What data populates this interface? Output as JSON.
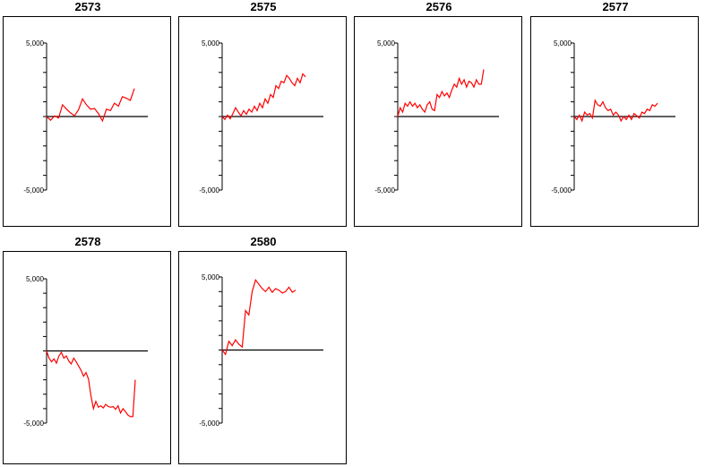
{
  "chart_data": [
    {
      "type": "line",
      "title": "2573",
      "ylim": [
        -5000,
        5000
      ],
      "yticklabels": [
        "5,000",
        "-5,000"
      ],
      "color": "#ff0000",
      "series": [
        {
          "values": [
            0,
            -250,
            50,
            -100,
            800,
            500,
            250,
            50,
            450,
            1200,
            800,
            500,
            550,
            200,
            -300,
            500,
            400,
            900,
            700,
            1350,
            1250,
            1100,
            1900
          ]
        }
      ]
    },
    {
      "type": "line",
      "title": "2575",
      "ylim": [
        -5000,
        5000
      ],
      "yticklabels": [
        "5,000",
        "-5,000"
      ],
      "color": "#ff0000",
      "series": [
        {
          "values": [
            0,
            -200,
            100,
            -150,
            200,
            600,
            300,
            50,
            400,
            150,
            500,
            300,
            700,
            400,
            900,
            600,
            1200,
            900,
            1500,
            1300,
            2100,
            1900,
            2400,
            2300,
            2800,
            2600,
            2300,
            2100,
            2600,
            2300,
            2900,
            2700
          ]
        }
      ]
    },
    {
      "type": "line",
      "title": "2576",
      "ylim": [
        -5000,
        5000
      ],
      "yticklabels": [
        "5,000",
        "-5,000"
      ],
      "color": "#ff0000",
      "series": [
        {
          "values": [
            0,
            600,
            300,
            900,
            700,
            1000,
            700,
            900,
            600,
            800,
            500,
            300,
            800,
            1000,
            500,
            400,
            1500,
            1300,
            1700,
            1400,
            1600,
            1300,
            1800,
            2200,
            2000,
            2600,
            2200,
            2500,
            2000,
            2400,
            2300,
            2000,
            2500,
            2200,
            2200,
            3200
          ]
        }
      ]
    },
    {
      "type": "line",
      "title": "2577",
      "ylim": [
        -5000,
        5000
      ],
      "yticklabels": [
        "5,000",
        "-5,000"
      ],
      "color": "#ff0000",
      "series": [
        {
          "values": [
            0,
            -200,
            100,
            -300,
            300,
            100,
            200,
            -100,
            1100,
            800,
            700,
            1000,
            600,
            400,
            500,
            100,
            300,
            100,
            -300,
            0,
            -200,
            100,
            -200,
            200,
            50,
            -100,
            300,
            200,
            500,
            400,
            800,
            700,
            900
          ]
        }
      ]
    },
    {
      "type": "line",
      "title": "2578",
      "ylim": [
        -5000,
        5000
      ],
      "yticklabels": [
        "5,000",
        "-5,000"
      ],
      "color": "#ff0000",
      "series": [
        {
          "values": [
            0,
            -500,
            -750,
            -550,
            -850,
            -350,
            -100,
            -500,
            -350,
            -700,
            -900,
            -500,
            -750,
            -1050,
            -1350,
            -1750,
            -1500,
            -1950,
            -3100,
            -4000,
            -3500,
            -3900,
            -3800,
            -3950,
            -3700,
            -3850,
            -3900,
            -3850,
            -4050,
            -3800,
            -4300,
            -4000,
            -4200,
            -4450,
            -4550,
            -4550,
            -2000
          ]
        }
      ]
    },
    {
      "type": "line",
      "title": "2580",
      "ylim": [
        -5000,
        5000
      ],
      "yticklabels": [
        "5,000",
        "-5,000"
      ],
      "color": "#ff0000",
      "series": [
        {
          "values": [
            0,
            -300,
            600,
            300,
            700,
            400,
            200,
            2700,
            2400,
            4000,
            4800,
            4500,
            4200,
            4000,
            4300,
            3950,
            4200,
            4100,
            3900,
            4000,
            4300,
            3950,
            4100
          ]
        }
      ]
    }
  ]
}
